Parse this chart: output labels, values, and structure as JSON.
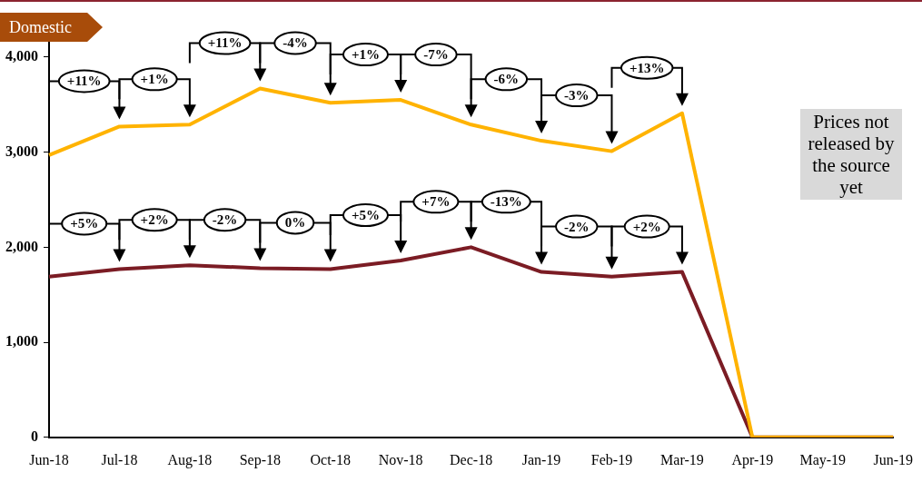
{
  "chart_data": {
    "type": "line",
    "title": "Domestic",
    "categories": [
      "Jun-18",
      "Jul-18",
      "Aug-18",
      "Sep-18",
      "Oct-18",
      "Nov-18",
      "Dec-18",
      "Jan-19",
      "Feb-19",
      "Mar-19",
      "Apr-19",
      "May-19",
      "Jun-19"
    ],
    "series": [
      {
        "color": "#ffb300",
        "values": [
          2970,
          3270,
          3290,
          3670,
          3520,
          3550,
          3290,
          3120,
          3010,
          3410,
          0,
          0,
          0
        ]
      },
      {
        "color": "#7b1c24",
        "values": [
          1690,
          1770,
          1810,
          1780,
          1770,
          1860,
          2000,
          1740,
          1690,
          1740,
          0,
          0,
          0
        ]
      }
    ],
    "ylim": [
      0,
      4200
    ],
    "yticks": [
      {
        "value": 0,
        "label": "0"
      },
      {
        "value": 1000,
        "label": "1,000"
      },
      {
        "value": 2000,
        "label": "2,000"
      },
      {
        "value": 3000,
        "label": "3,000"
      },
      {
        "value": 4000,
        "label": "4,000"
      }
    ],
    "grid": false,
    "legend": false,
    "marker": "none",
    "line_style": "solid",
    "annotations": [
      "+11%",
      "+1%",
      "+11%",
      "-4%",
      "+1%",
      "-7%",
      "-6%",
      "-3%",
      "+13%",
      "+5%",
      "+2%",
      "-2%",
      "0%",
      "+5%",
      "+7%",
      "-13%",
      "-2%",
      "+2%",
      "Prices not released by the source yet"
    ]
  }
}
